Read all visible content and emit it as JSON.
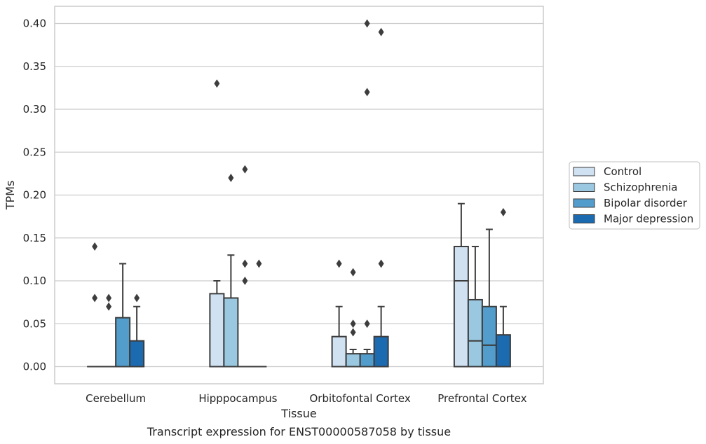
{
  "chart_data": {
    "type": "box",
    "xlabel": "Tissue",
    "ylabel": "TPMs",
    "caption": "Transcript expression for ENST00000587058 by tissue",
    "ylim": [
      -0.02,
      0.42
    ],
    "yticks": [
      "0.00",
      "0.05",
      "0.10",
      "0.15",
      "0.20",
      "0.25",
      "0.30",
      "0.35",
      "0.40"
    ],
    "ytick_values": [
      0,
      0.05,
      0.1,
      0.15,
      0.2,
      0.25,
      0.3,
      0.35,
      0.4
    ],
    "grid": true,
    "legend_position": "right",
    "categories": [
      "Cerebellum",
      "Hipppocampus",
      "Orbitofontal Cortex",
      "Prefrontal Cortex"
    ],
    "series": [
      {
        "name": "Control",
        "color": "#d0e1f2",
        "boxes": [
          {
            "q1": 0,
            "median": 0,
            "q3": 0,
            "whisker_low": 0,
            "whisker_high": 0,
            "outliers": [
              0.14,
              0.08
            ]
          },
          {
            "q1": 0,
            "median": 0,
            "q3": 0.085,
            "whisker_low": 0,
            "whisker_high": 0.1,
            "outliers": [
              0.33
            ]
          },
          {
            "q1": 0,
            "median": 0,
            "q3": 0.035,
            "whisker_low": 0,
            "whisker_high": 0.07,
            "outliers": [
              0.12
            ]
          },
          {
            "q1": 0,
            "median": 0.1,
            "q3": 0.14,
            "whisker_low": 0,
            "whisker_high": 0.19,
            "outliers": []
          }
        ]
      },
      {
        "name": "Schizophrenia",
        "color": "#9ac8e0",
        "boxes": [
          {
            "q1": 0,
            "median": 0,
            "q3": 0,
            "whisker_low": 0,
            "whisker_high": 0,
            "outliers": [
              0.08,
              0.07
            ]
          },
          {
            "q1": 0,
            "median": 0,
            "q3": 0.08,
            "whisker_low": 0,
            "whisker_high": 0.13,
            "outliers": [
              0.22
            ]
          },
          {
            "q1": 0,
            "median": 0,
            "q3": 0.015,
            "whisker_low": 0,
            "whisker_high": 0.02,
            "outliers": [
              0.11,
              0.05,
              0.04
            ]
          },
          {
            "q1": 0,
            "median": 0.03,
            "q3": 0.078,
            "whisker_low": 0,
            "whisker_high": 0.14,
            "outliers": []
          }
        ]
      },
      {
        "name": "Bipolar disorder",
        "color": "#529dcc",
        "boxes": [
          {
            "q1": 0,
            "median": 0,
            "q3": 0.057,
            "whisker_low": 0,
            "whisker_high": 0.12,
            "outliers": []
          },
          {
            "q1": 0,
            "median": 0,
            "q3": 0,
            "whisker_low": 0,
            "whisker_high": 0,
            "outliers": [
              0.23,
              0.12,
              0.1
            ]
          },
          {
            "q1": 0,
            "median": 0,
            "q3": 0.015,
            "whisker_low": 0,
            "whisker_high": 0.02,
            "outliers": [
              0.4,
              0.32,
              0.05
            ]
          },
          {
            "q1": 0,
            "median": 0.025,
            "q3": 0.07,
            "whisker_low": 0,
            "whisker_high": 0.16,
            "outliers": []
          }
        ]
      },
      {
        "name": "Major depression",
        "color": "#1c6aaf",
        "boxes": [
          {
            "q1": 0,
            "median": 0,
            "q3": 0.03,
            "whisker_low": 0,
            "whisker_high": 0.07,
            "outliers": [
              0.08
            ]
          },
          {
            "q1": 0,
            "median": 0,
            "q3": 0,
            "whisker_low": 0,
            "whisker_high": 0,
            "outliers": [
              0.12
            ]
          },
          {
            "q1": 0,
            "median": 0,
            "q3": 0.035,
            "whisker_low": 0,
            "whisker_high": 0.07,
            "outliers": [
              0.39,
              0.12
            ]
          },
          {
            "q1": 0,
            "median": 0,
            "q3": 0.037,
            "whisker_low": 0,
            "whisker_high": 0.07,
            "outliers": [
              0.18
            ]
          }
        ]
      }
    ]
  }
}
